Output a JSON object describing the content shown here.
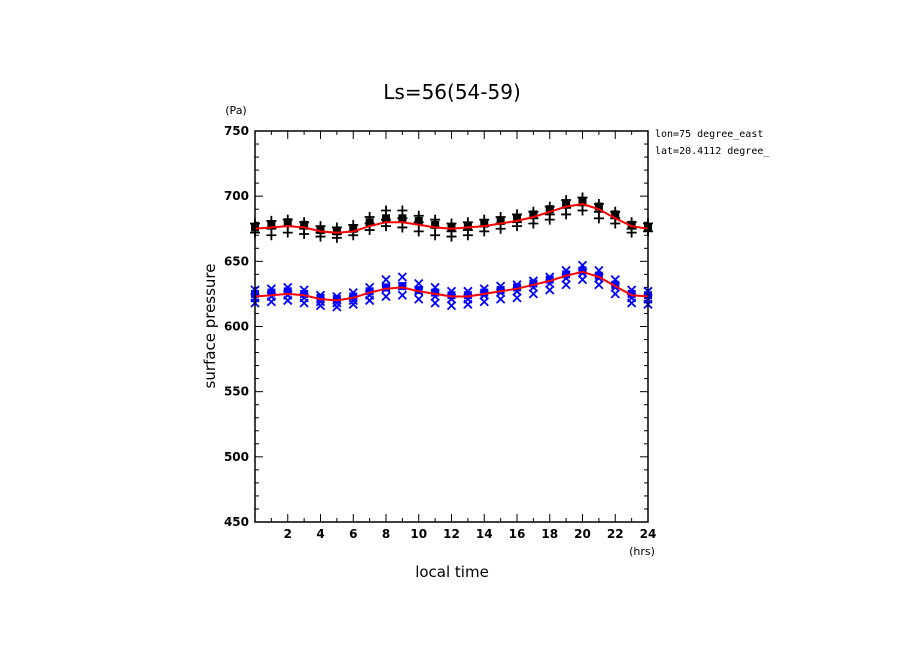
{
  "chart_data": {
    "type": "scatter",
    "title": "Ls=56(54-59)",
    "xlabel": "local time",
    "ylabel": "surface pressure",
    "x_unit": "(hrs)",
    "y_unit": "(Pa)",
    "xlim": [
      0,
      24
    ],
    "ylim": [
      450,
      750
    ],
    "x_ticks": [
      2,
      4,
      6,
      8,
      10,
      12,
      14,
      16,
      18,
      20,
      22,
      24
    ],
    "y_ticks": [
      450,
      500,
      550,
      600,
      650,
      700,
      750
    ],
    "annotations": [
      "lon=75 degree_east",
      "lat=20.4112 degree_"
    ],
    "grid": false,
    "colors": {
      "black_series": "#000000",
      "blue_series": "#0000ff",
      "fit": "#ff0000"
    },
    "series": [
      {
        "marker": "square",
        "color": "#000000",
        "x": [
          0,
          1,
          2,
          3,
          4,
          5,
          6,
          7,
          8,
          9,
          10,
          11,
          12,
          13,
          14,
          15,
          16,
          17,
          18,
          19,
          20,
          21,
          22,
          23,
          24
        ],
        "values": [
          676,
          678,
          680,
          678,
          674,
          673,
          675,
          680,
          683,
          683,
          681,
          678,
          676,
          677,
          679,
          681,
          683,
          686,
          690,
          694,
          696,
          692,
          686,
          678,
          676
        ]
      },
      {
        "marker": "plus",
        "color": "#000000",
        "x": [
          0,
          0,
          1,
          1,
          1,
          2,
          2,
          2,
          3,
          3,
          3,
          4,
          4,
          4,
          5,
          5,
          5,
          6,
          6,
          6,
          7,
          7,
          7,
          8,
          8,
          8,
          9,
          9,
          9,
          10,
          10,
          10,
          11,
          11,
          11,
          12,
          12,
          12,
          13,
          13,
          13,
          14,
          14,
          14,
          15,
          15,
          15,
          16,
          16,
          16,
          17,
          17,
          17,
          18,
          18,
          18,
          19,
          19,
          19,
          20,
          20,
          20,
          21,
          21,
          21,
          22,
          22,
          22,
          23,
          23,
          23,
          24,
          24
        ],
        "values": [
          679,
          672,
          681,
          675,
          670,
          682,
          677,
          672,
          680,
          675,
          671,
          677,
          672,
          669,
          676,
          671,
          668,
          678,
          673,
          670,
          684,
          679,
          674,
          689,
          682,
          677,
          689,
          683,
          676,
          685,
          680,
          673,
          682,
          676,
          670,
          679,
          673,
          669,
          680,
          674,
          670,
          682,
          677,
          673,
          684,
          679,
          675,
          686,
          680,
          677,
          688,
          683,
          679,
          692,
          686,
          682,
          697,
          691,
          686,
          699,
          693,
          689,
          694,
          688,
          683,
          688,
          683,
          679,
          680,
          675,
          672,
          679,
          673
        ]
      },
      {
        "marker": "square",
        "color": "#0000ff",
        "x": [
          0,
          1,
          2,
          3,
          4,
          5,
          6,
          7,
          8,
          9,
          10,
          11,
          12,
          13,
          14,
          15,
          16,
          17,
          18,
          19,
          20,
          21,
          22,
          23,
          24
        ],
        "values": [
          625,
          626,
          627,
          625,
          622,
          621,
          623,
          627,
          630,
          631,
          628,
          626,
          624,
          624,
          626,
          628,
          630,
          633,
          636,
          640,
          643,
          639,
          632,
          625,
          624
        ]
      },
      {
        "marker": "x",
        "color": "#0000ff",
        "x": [
          0,
          0,
          0,
          1,
          1,
          1,
          2,
          2,
          2,
          3,
          3,
          3,
          4,
          4,
          4,
          5,
          5,
          5,
          6,
          6,
          6,
          7,
          7,
          7,
          8,
          8,
          8,
          9,
          9,
          9,
          10,
          10,
          10,
          11,
          11,
          11,
          12,
          12,
          12,
          13,
          13,
          13,
          14,
          14,
          14,
          15,
          15,
          15,
          16,
          16,
          16,
          17,
          17,
          17,
          18,
          18,
          18,
          19,
          19,
          19,
          20,
          20,
          20,
          21,
          21,
          21,
          22,
          22,
          22,
          23,
          23,
          23,
          24,
          24,
          24
        ],
        "values": [
          628,
          622,
          618,
          629,
          623,
          619,
          630,
          624,
          620,
          628,
          622,
          618,
          624,
          619,
          616,
          623,
          618,
          615,
          626,
          620,
          617,
          630,
          624,
          620,
          636,
          629,
          623,
          638,
          631,
          624,
          633,
          627,
          621,
          630,
          623,
          618,
          627,
          621,
          616,
          627,
          621,
          617,
          629,
          624,
          619,
          631,
          626,
          621,
          632,
          627,
          622,
          635,
          630,
          625,
          638,
          633,
          628,
          643,
          637,
          632,
          647,
          641,
          636,
          643,
          637,
          632,
          636,
          630,
          625,
          628,
          622,
          618,
          627,
          621,
          617
        ]
      },
      {
        "marker": "line",
        "color": "#ff0000",
        "x": [
          0,
          1,
          2,
          3,
          4,
          5,
          6,
          7,
          8,
          9,
          10,
          11,
          12,
          13,
          14,
          15,
          16,
          17,
          18,
          19,
          20,
          21,
          22,
          23,
          24
        ],
        "values": [
          675,
          676,
          677,
          676,
          673,
          672,
          673,
          677,
          680,
          680,
          678,
          676,
          675,
          676,
          677,
          679,
          681,
          684,
          688,
          692,
          694,
          690,
          683,
          677,
          675
        ]
      },
      {
        "marker": "line",
        "color": "#ff0000",
        "x": [
          0,
          1,
          2,
          3,
          4,
          5,
          6,
          7,
          8,
          9,
          10,
          11,
          12,
          13,
          14,
          15,
          16,
          17,
          18,
          19,
          20,
          21,
          22,
          23,
          24
        ],
        "values": [
          623,
          624,
          625,
          624,
          621,
          620,
          622,
          626,
          629,
          630,
          627,
          625,
          623,
          623,
          625,
          627,
          629,
          632,
          635,
          639,
          642,
          638,
          631,
          624,
          623
        ]
      }
    ]
  }
}
